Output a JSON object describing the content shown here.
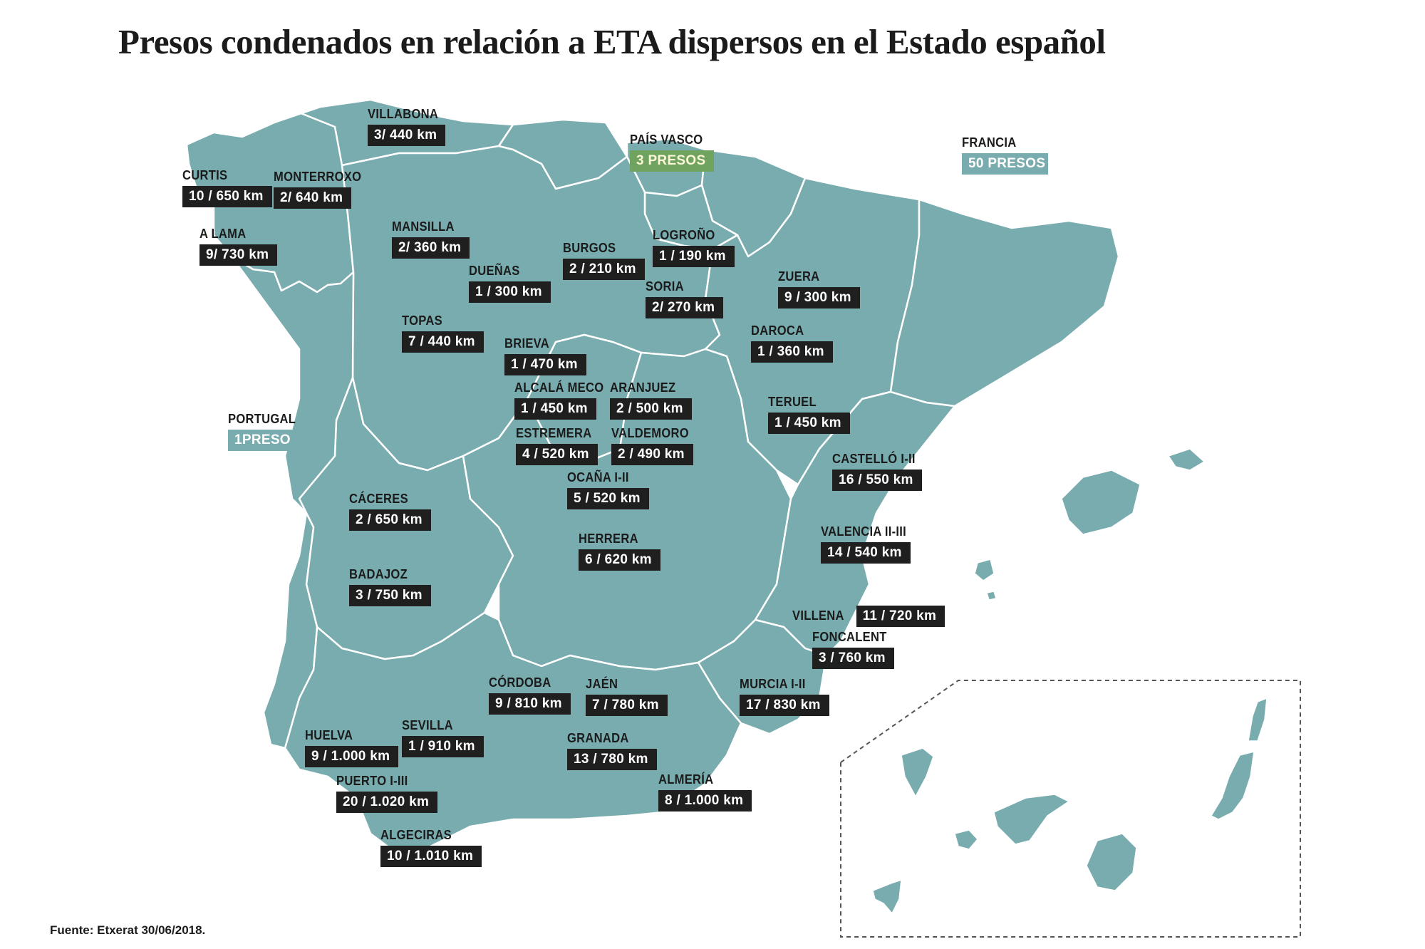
{
  "title": "Presos condenados en relación a ETA dispersos en el Estado español",
  "source": "Fuente: Etxerat 30/06/2018.",
  "colors": {
    "land": "#79acaf",
    "label_bg": "#1f1f1f",
    "basque_highlight": "#6fa35f",
    "border": "#ffffff"
  },
  "highlights": {
    "pais_vasco": {
      "name": "PAÍS VASCO",
      "value": "3 PRESOS"
    },
    "francia": {
      "name": "FRANCIA",
      "value": "50 PRESOS"
    },
    "portugal": {
      "name": "PORTUGAL",
      "value": "1PRESO"
    }
  },
  "prisons": [
    {
      "name": "VILLABONA",
      "value": "3/ 440 km"
    },
    {
      "name": "CURTIS",
      "value": "10 / 650 km"
    },
    {
      "name": "MONTERROXO",
      "value": "2/ 640 km"
    },
    {
      "name": "A LAMA",
      "value": "9/ 730 km"
    },
    {
      "name": "MANSILLA",
      "value": "2/ 360 km"
    },
    {
      "name": "BURGOS",
      "value": "2 / 210 km"
    },
    {
      "name": "LOGROÑO",
      "value": "1 / 190 km"
    },
    {
      "name": "DUEÑAS",
      "value": "1 / 300 km"
    },
    {
      "name": "SORIA",
      "value": "2/ 270 km"
    },
    {
      "name": "ZUERA",
      "value": "9 / 300 km"
    },
    {
      "name": "TOPAS",
      "value": "7 / 440 km"
    },
    {
      "name": "DAROCA",
      "value": "1 / 360 km"
    },
    {
      "name": "BRIEVA",
      "value": "1 / 470 km"
    },
    {
      "name": "ALCALÁ MECO",
      "value": "1 / 450 km"
    },
    {
      "name": "ARANJUEZ",
      "value": "2 / 500 km"
    },
    {
      "name": "TERUEL",
      "value": "1 / 450 km"
    },
    {
      "name": "ESTREMERA",
      "value": "4 / 520 km"
    },
    {
      "name": "VALDEMORO",
      "value": "2 / 490 km"
    },
    {
      "name": "CASTELLÓ I-II",
      "value": "16 / 550 km"
    },
    {
      "name": "OCAÑA I-II",
      "value": "5 / 520 km"
    },
    {
      "name": "CÁCERES",
      "value": "2 / 650 km"
    },
    {
      "name": "VALENCIA II-III",
      "value": "14 / 540 km"
    },
    {
      "name": "HERRERA",
      "value": "6 / 620 km"
    },
    {
      "name": "BADAJOZ",
      "value": "3 / 750 km"
    },
    {
      "name": "VILLENA",
      "value": "11 / 720 km"
    },
    {
      "name": "FONCALENT",
      "value": "3 / 760 km"
    },
    {
      "name": "CÓRDOBA",
      "value": "9 / 810 km"
    },
    {
      "name": "JAÉN",
      "value": "7 / 780 km"
    },
    {
      "name": "MURCIA I-II",
      "value": "17 / 830 km"
    },
    {
      "name": "HUELVA",
      "value": "9 / 1.000 km"
    },
    {
      "name": "SEVILLA",
      "value": "1 / 910 km"
    },
    {
      "name": "GRANADA",
      "value": "13 / 780 km"
    },
    {
      "name": "PUERTO I-III",
      "value": "20 / 1.020 km"
    },
    {
      "name": "ALMERÍA",
      "value": "8 / 1.000 km"
    },
    {
      "name": "ALGECIRAS",
      "value": "10 / 1.010 km"
    }
  ]
}
